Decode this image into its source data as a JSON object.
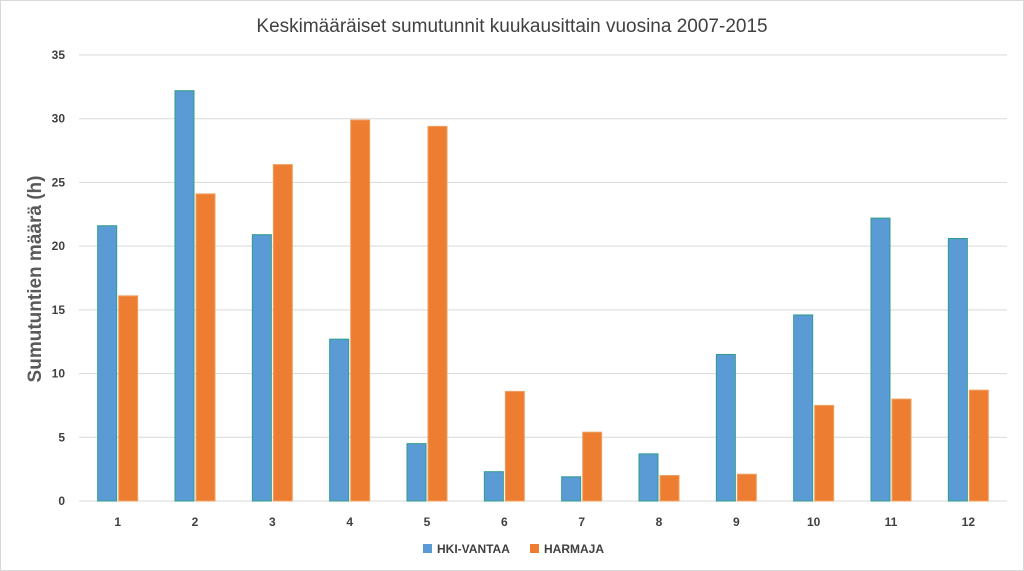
{
  "chart_data": {
    "type": "bar",
    "title": "Keskimääräiset sumutunnit kuukausittain vuosina 2007-2015",
    "xlabel": "",
    "ylabel": "Sumutuntien määrä (h)",
    "ylim": [
      0,
      35
    ],
    "yticks": [
      "0",
      "5",
      "10",
      "15",
      "20",
      "25",
      "30",
      "35"
    ],
    "grid": true,
    "legend_position": "bottom",
    "categories": [
      "1",
      "2",
      "3",
      "4",
      "5",
      "6",
      "7",
      "8",
      "9",
      "10",
      "11",
      "12"
    ],
    "series": [
      {
        "name": "HKI-VANTAA",
        "color": "#5b9bd5",
        "values": [
          21.6,
          32.2,
          20.9,
          12.7,
          4.5,
          2.3,
          1.9,
          3.7,
          11.5,
          14.6,
          22.2,
          20.6
        ]
      },
      {
        "name": "HARMAJA",
        "color": "#ed7d31",
        "values": [
          16.1,
          24.1,
          26.4,
          29.9,
          29.4,
          8.6,
          5.4,
          2.0,
          2.1,
          7.5,
          8.0,
          8.7
        ]
      }
    ]
  }
}
